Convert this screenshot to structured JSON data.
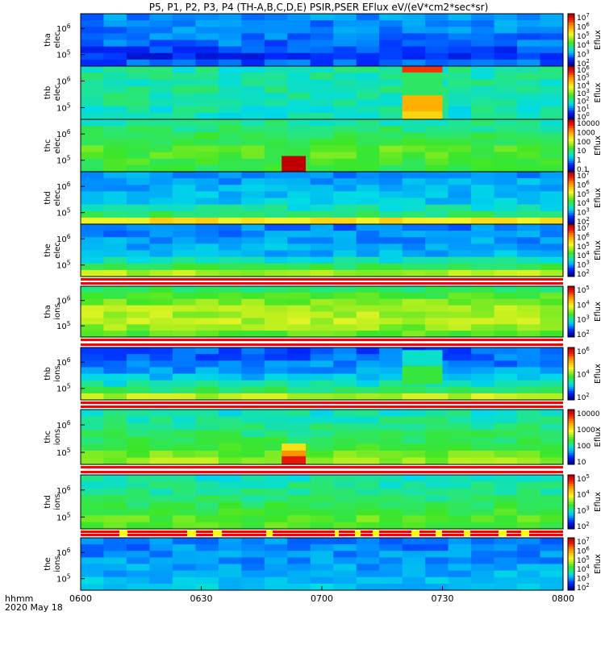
{
  "chart_data": {
    "type": "heatmap",
    "title": "P5, P1, P2, P3, P4 (TH-A,B,C,D,E) PSIR,PSER EFlux eV/(eV*cm2*sec*sr)",
    "x_axis": {
      "label_line1": "hhmm",
      "label_line2": "2020 May 18",
      "ticks": [
        "0600",
        "0630",
        "0700",
        "0730",
        "0800"
      ],
      "range": [
        "06:00",
        "08:00"
      ]
    },
    "colorbar_label": "Eflux",
    "panels": [
      {
        "name": "tha-elec",
        "label": [
          "tha",
          "elec"
        ],
        "yticks": [
          "10^6",
          "10^5"
        ],
        "cbar_ticks": [
          "10^7",
          "10^6",
          "10^5",
          "10^4",
          "10^3",
          "10^2"
        ],
        "profile": [
          [
            0,
            1.0
          ],
          [
            0.55,
            0.9
          ],
          [
            0.8,
            0.5
          ],
          [
            0.95,
            0.8
          ],
          [
            1,
            0.0
          ]
        ]
      },
      {
        "name": "thb-elec",
        "label": [
          "thb",
          "elec"
        ],
        "yticks": [
          "10^6",
          "10^5"
        ],
        "cbar_ticks": [
          "10^6",
          "10^5",
          "10^4",
          "10^3",
          "10^2",
          "10^1",
          "10^0"
        ],
        "profile": [
          [
            0,
            1.6
          ],
          [
            0.5,
            1.7
          ],
          [
            1,
            1.5
          ]
        ],
        "feature": {
          "start": "07:20",
          "end": "07:30",
          "bands": [
            [
              0,
              0.12,
              4.3
            ],
            [
              0.12,
              0.55,
              1.9
            ],
            [
              0.55,
              0.85,
              3.6
            ],
            [
              0.85,
              1,
              3.3
            ]
          ]
        }
      },
      {
        "name": "thc-elec",
        "label": [
          "thc",
          "elec"
        ],
        "yticks": [
          "10^6",
          "10^5"
        ],
        "cbar_ticks": [
          "10000",
          "1000",
          "100",
          "10",
          "1",
          "0.1"
        ],
        "profile": [
          [
            0,
            1.6
          ],
          [
            0.6,
            2.3
          ],
          [
            1,
            2.0
          ]
        ],
        "feature": {
          "start": "06:50",
          "end": "06:56",
          "bands": [
            [
              0.7,
              1,
              4.9
            ]
          ]
        }
      },
      {
        "name": "thd-elec",
        "label": [
          "thd",
          "elec"
        ],
        "yticks": [
          "10^6",
          "10^5"
        ],
        "cbar_ticks": [
          "10^7",
          "10^6",
          "10^5",
          "10^4",
          "10^3",
          "10^2"
        ],
        "profile": [
          [
            0,
            1.0
          ],
          [
            0.6,
            1.3
          ],
          [
            0.85,
            2.0
          ],
          [
            0.95,
            3.3
          ],
          [
            1,
            4.5
          ]
        ]
      },
      {
        "name": "the-elec",
        "label": [
          "the",
          "elec"
        ],
        "yticks": [
          "10^6",
          "10^5"
        ],
        "cbar_ticks": [
          "10^7",
          "10^6",
          "10^5",
          "10^4",
          "10^3",
          "10^2"
        ],
        "profile": [
          [
            0,
            0.9
          ],
          [
            0.6,
            1.2
          ],
          [
            0.8,
            1.9
          ],
          [
            0.95,
            2.7
          ],
          [
            1,
            3.0
          ]
        ]
      },
      {
        "name": "tha-ions",
        "label": [
          "tha",
          "ions"
        ],
        "yticks": [
          "10^6",
          "10^5"
        ],
        "cbar_ticks": [
          "10^5",
          "10^4",
          "10^3",
          "10^2"
        ],
        "profile": [
          [
            0,
            1.8
          ],
          [
            0.4,
            2.6
          ],
          [
            0.7,
            2.7
          ],
          [
            1,
            2.2
          ]
        ]
      },
      {
        "name": "thb-ions",
        "label": [
          "thb",
          "ions"
        ],
        "yticks": [
          "10^6",
          "10^5"
        ],
        "cbar_ticks": [
          "10^6",
          "10^4",
          "10^2"
        ],
        "profile": [
          [
            0,
            0.7
          ],
          [
            0.5,
            1.1
          ],
          [
            0.8,
            1.8
          ],
          [
            0.95,
            2.8
          ],
          [
            1,
            3.0
          ]
        ],
        "feature": {
          "start": "07:20",
          "end": "07:30",
          "bands": [
            [
              0.05,
              0.35,
              1.5
            ],
            [
              0.35,
              0.7,
              2.1
            ]
          ]
        }
      },
      {
        "name": "thc-ions",
        "label": [
          "thc",
          "ions"
        ],
        "yticks": [
          "10^6",
          "10^5"
        ],
        "cbar_ticks": [
          "10000",
          "1000",
          "100",
          "10"
        ],
        "profile": [
          [
            0,
            1.5
          ],
          [
            0.6,
            2.0
          ],
          [
            0.9,
            2.5
          ],
          [
            1,
            2.6
          ]
        ],
        "feature": {
          "start": "06:50",
          "end": "06:56",
          "bands": [
            [
              0.62,
              0.75,
              3.2
            ],
            [
              0.75,
              0.85,
              3.8
            ],
            [
              0.85,
              1,
              4.5
            ]
          ]
        }
      },
      {
        "name": "thd-ions",
        "label": [
          "thd",
          "ions"
        ],
        "yticks": [
          "10^6",
          "10^5"
        ],
        "cbar_ticks": [
          "10^5",
          "10^4",
          "10^3",
          "10^2"
        ],
        "profile": [
          [
            0,
            1.5
          ],
          [
            0.5,
            1.9
          ],
          [
            0.8,
            2.3
          ],
          [
            1,
            2.2
          ]
        ]
      },
      {
        "name": "the-ions",
        "label": [
          "the",
          "ions"
        ],
        "yticks": [
          "10^6",
          "10^5"
        ],
        "cbar_ticks": [
          "10^7",
          "10^6",
          "10^5",
          "10^4",
          "10^3",
          "10^2"
        ],
        "profile": [
          [
            0,
            0.9
          ],
          [
            0.6,
            1.1
          ],
          [
            1,
            1.3
          ]
        ]
      }
    ]
  }
}
